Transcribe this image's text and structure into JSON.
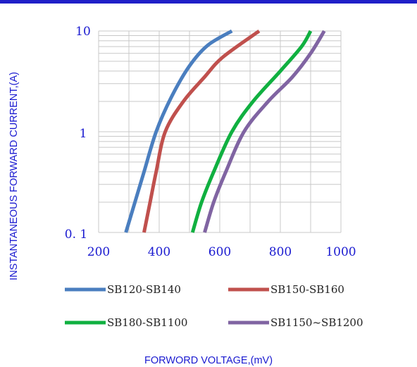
{
  "chart_data": {
    "type": "line",
    "xlabel": "FORWORD VOLTAGE,(mV)",
    "ylabel": "INSTANTANEOUS FORWARD CURRENT,(A)",
    "xlim": [
      200,
      1000
    ],
    "ylim": [
      0.1,
      10
    ],
    "y_scale": "log",
    "x_ticks": [
      "200",
      "400",
      "600",
      "800",
      "1000"
    ],
    "y_ticks": [
      "0. 1",
      "1",
      "10"
    ],
    "grid": true,
    "legend_position": "bottom",
    "series": [
      {
        "name": "SB120-SB140",
        "color": "#4a7ebf",
        "points": [
          [
            290,
            0.1
          ],
          [
            320,
            0.2
          ],
          [
            350,
            0.4
          ],
          [
            390,
            1.0
          ],
          [
            440,
            2.2
          ],
          [
            500,
            4.5
          ],
          [
            560,
            7.2
          ],
          [
            640,
            10
          ]
        ]
      },
      {
        "name": "SB150-SB160",
        "color": "#c0504d",
        "points": [
          [
            350,
            0.1
          ],
          [
            370,
            0.2
          ],
          [
            390,
            0.4
          ],
          [
            420,
            1.0
          ],
          [
            480,
            2.0
          ],
          [
            550,
            3.5
          ],
          [
            610,
            5.5
          ],
          [
            730,
            10
          ]
        ]
      },
      {
        "name": "SB180-SB1100",
        "color": "#10b040",
        "points": [
          [
            510,
            0.1
          ],
          [
            540,
            0.2
          ],
          [
            580,
            0.4
          ],
          [
            640,
            1.0
          ],
          [
            710,
            2.0
          ],
          [
            800,
            4.0
          ],
          [
            870,
            7.0
          ],
          [
            900,
            10
          ]
        ]
      },
      {
        "name": "SB1150~SB1200",
        "color": "#8064a2",
        "points": [
          [
            550,
            0.1
          ],
          [
            580,
            0.2
          ],
          [
            620,
            0.4
          ],
          [
            680,
            1.0
          ],
          [
            760,
            2.0
          ],
          [
            840,
            3.5
          ],
          [
            900,
            6.0
          ],
          [
            945,
            10
          ]
        ]
      }
    ]
  }
}
